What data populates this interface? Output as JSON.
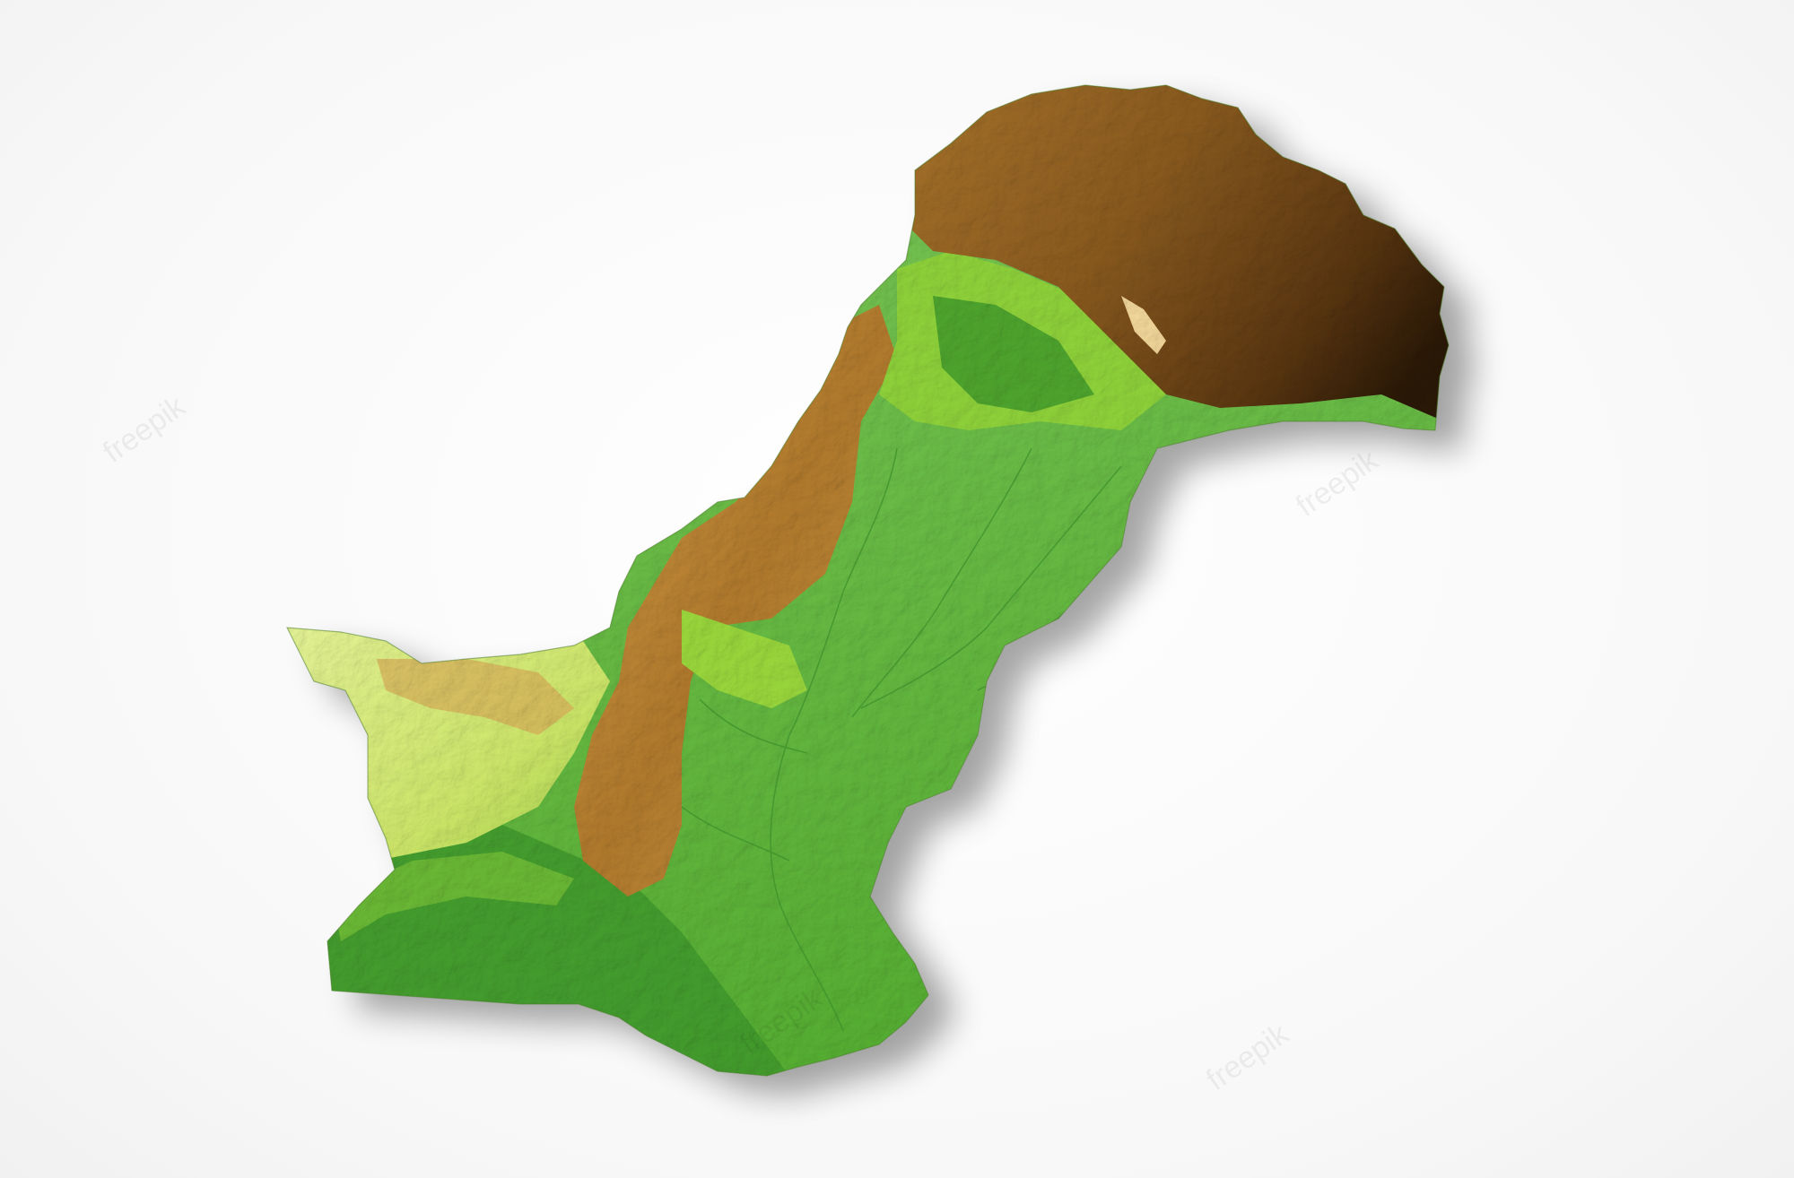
{
  "watermark": {
    "text": "freepik"
  },
  "colors": {
    "background": "#fbfbfb",
    "lowland_green": "#5fb83a",
    "plain_green": "#7cc45a",
    "dark_green": "#2f8a24",
    "yellow_green": "#d6ee7a",
    "pale_yellow": "#eef7b0",
    "ochre": "#c7923a",
    "brown": "#8a5a1e",
    "dark_brown": "#3a2208"
  }
}
